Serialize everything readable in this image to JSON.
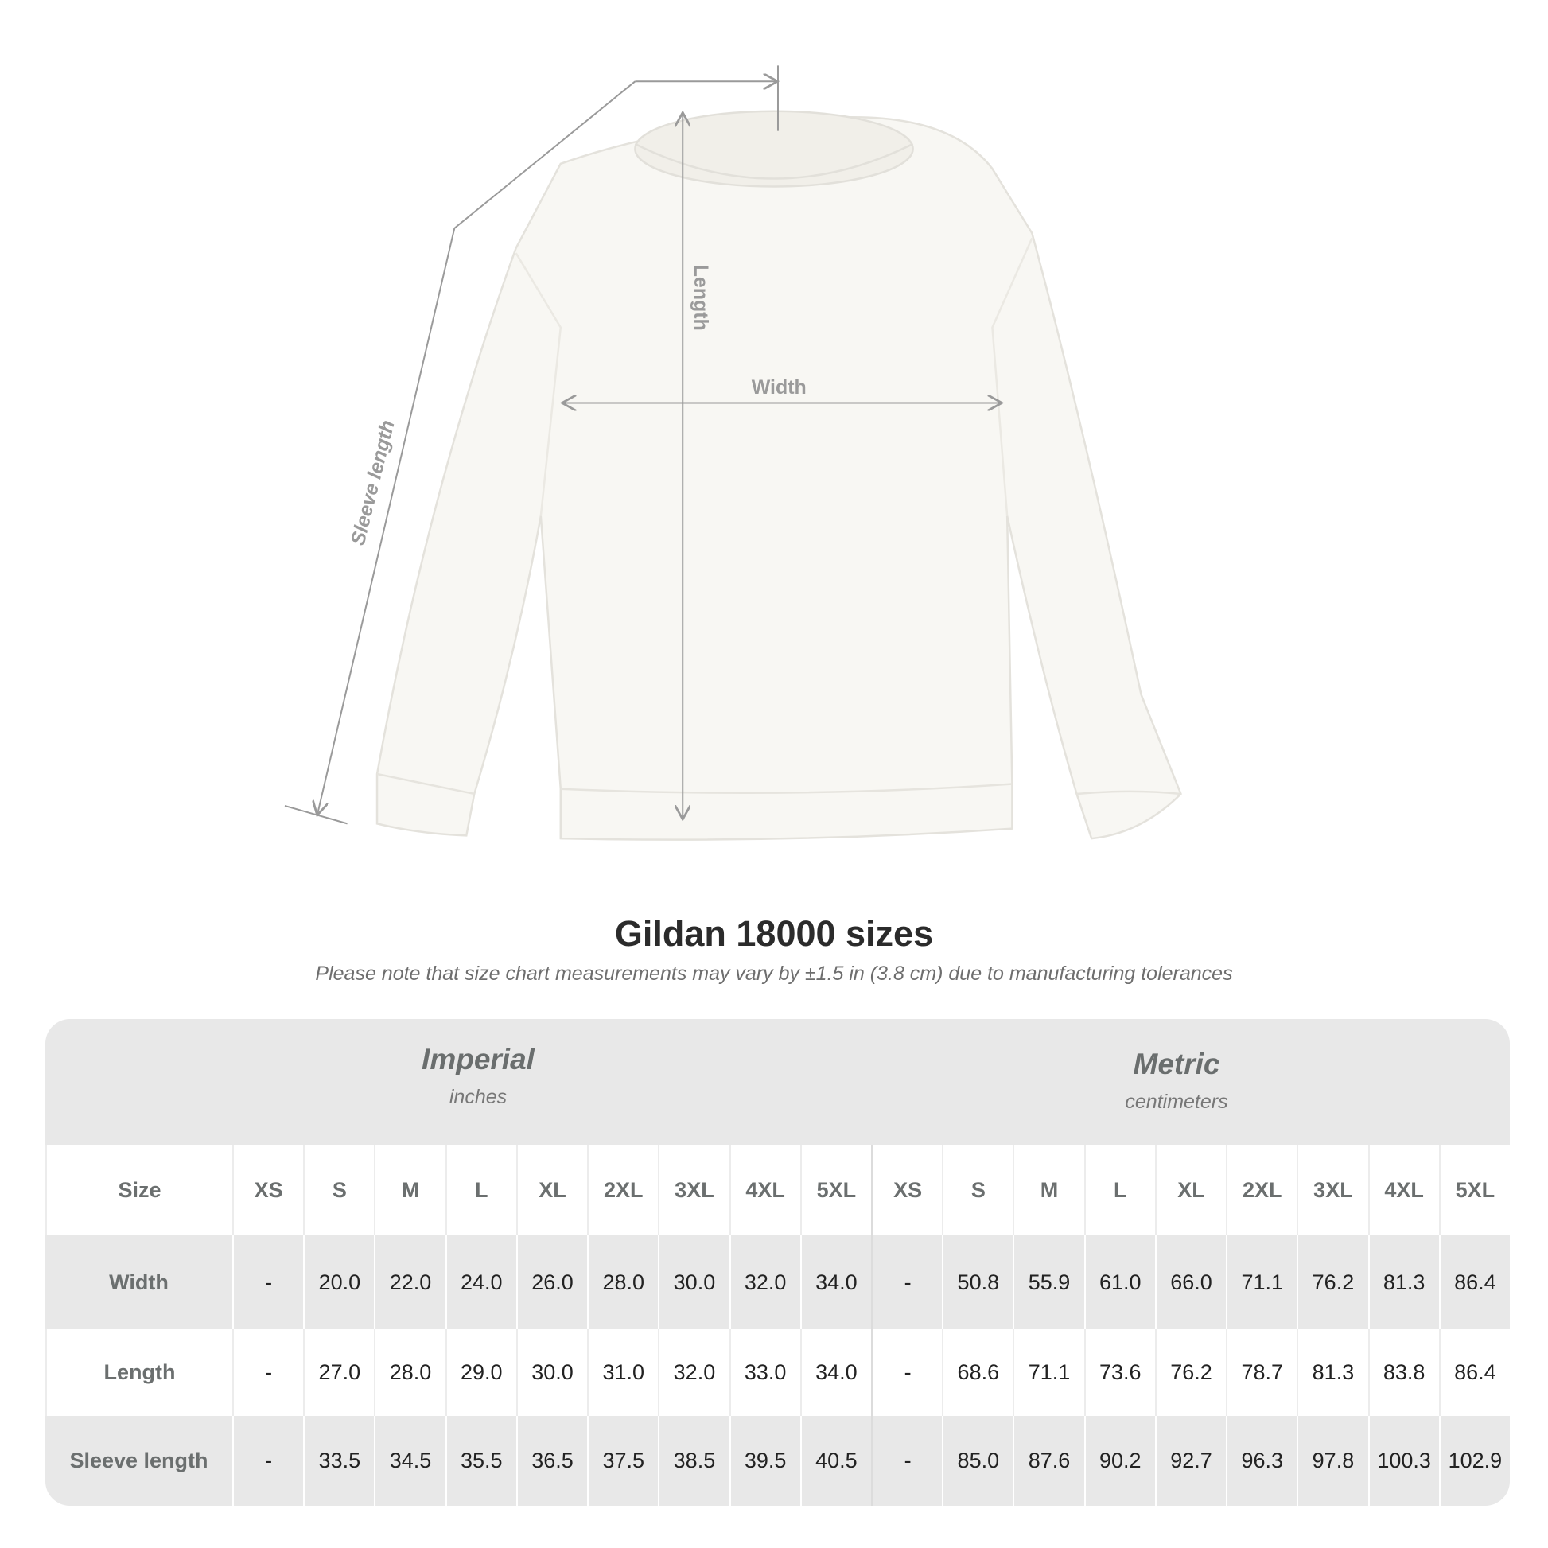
{
  "illustration": {
    "labels": {
      "length": "Length",
      "width": "Width",
      "sleeve": "Sleeve length"
    },
    "colors": {
      "garment": "#f8f7f3",
      "arrow": "#9a9a9a"
    }
  },
  "title": "Gildan 18000 sizes",
  "note": "Please note that size chart measurements may vary by ±1.5 in (3.8 cm) due to manufacturing tolerances",
  "table": {
    "imperial": {
      "name": "Imperial",
      "unit": "inches"
    },
    "metric": {
      "name": "Metric",
      "unit": "centimeters"
    },
    "size_label": "Size",
    "sizes": [
      "XS",
      "S",
      "M",
      "L",
      "XL",
      "2XL",
      "3XL",
      "4XL",
      "5XL"
    ],
    "rows": [
      {
        "label": "Width",
        "imperial": [
          "-",
          "20.0",
          "22.0",
          "24.0",
          "26.0",
          "28.0",
          "30.0",
          "32.0",
          "34.0"
        ],
        "metric": [
          "-",
          "50.8",
          "55.9",
          "61.0",
          "66.0",
          "71.1",
          "76.2",
          "81.3",
          "86.4"
        ]
      },
      {
        "label": "Length",
        "imperial": [
          "-",
          "27.0",
          "28.0",
          "29.0",
          "30.0",
          "31.0",
          "32.0",
          "33.0",
          "34.0"
        ],
        "metric": [
          "-",
          "68.6",
          "71.1",
          "73.6",
          "76.2",
          "78.7",
          "81.3",
          "83.8",
          "86.4"
        ]
      },
      {
        "label": "Sleeve length",
        "imperial": [
          "-",
          "33.5",
          "34.5",
          "35.5",
          "36.5",
          "37.5",
          "38.5",
          "39.5",
          "40.5"
        ],
        "metric": [
          "-",
          "85.0",
          "87.6",
          "90.2",
          "92.7",
          "96.3",
          "97.8",
          "100.3",
          "102.9"
        ]
      }
    ]
  }
}
